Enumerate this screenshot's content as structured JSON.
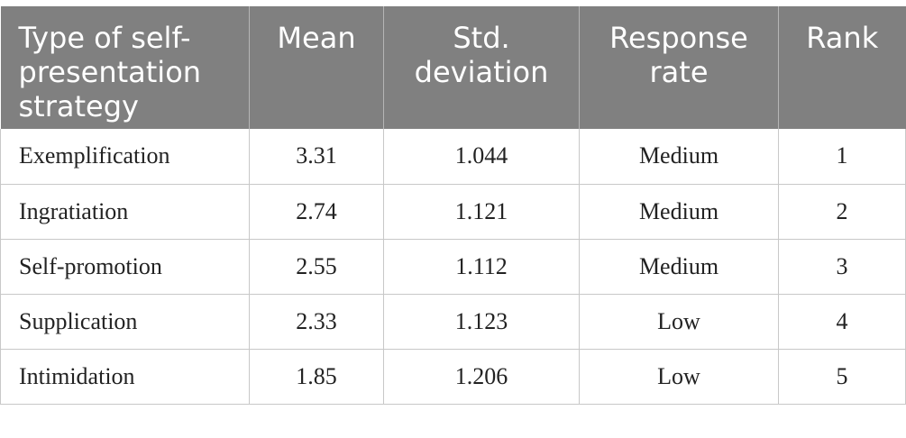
{
  "table": {
    "headers": [
      "Type of self-presentation strategy",
      "Mean",
      "Std. deviation",
      "Response rate",
      "Rank"
    ],
    "rows": [
      [
        "Exemplification",
        "3.31",
        "1.044",
        "Medium",
        "1"
      ],
      [
        "Ingratiation",
        "2.74",
        "1.121",
        "Medium",
        "2"
      ],
      [
        "Self-promotion",
        "2.55",
        "1.112",
        "Medium",
        "3"
      ],
      [
        "Supplication",
        "2.33",
        "1.123",
        "Low",
        "4"
      ],
      [
        "Intimidation",
        "1.85",
        "1.206",
        "Low",
        "5"
      ]
    ]
  }
}
